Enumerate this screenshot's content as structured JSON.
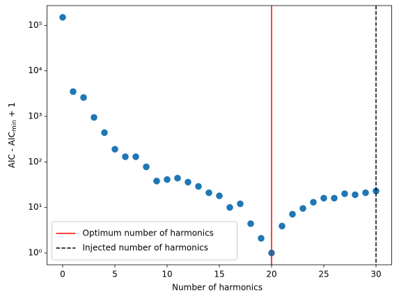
{
  "chart_data": {
    "type": "scatter",
    "xlabel": "Number of harmonics",
    "ylabel": {
      "main": "AIC - AIC",
      "sub": "min",
      "tail": " + 1"
    },
    "x": [
      0,
      1,
      2,
      3,
      4,
      5,
      6,
      7,
      8,
      9,
      10,
      11,
      12,
      13,
      14,
      15,
      16,
      17,
      18,
      19,
      20,
      21,
      22,
      23,
      24,
      25,
      26,
      27,
      28,
      29,
      30
    ],
    "series": [
      {
        "color": "#1f77b4",
        "values": [
          150000,
          3500,
          2600,
          950,
          440,
          190,
          130,
          130,
          78,
          38,
          41,
          44,
          36,
          29,
          21,
          18,
          10,
          12,
          4.4,
          2.1,
          1,
          3.9,
          7.1,
          9.5,
          13,
          16,
          16,
          20,
          19,
          21,
          23
        ]
      }
    ],
    "xlim": [
      -1.5,
      31.5
    ],
    "xticks": [
      0,
      5,
      10,
      15,
      20,
      25,
      30
    ],
    "ylim": [
      0.55,
      272000
    ],
    "yscale": "log",
    "yticks": [
      {
        "value": 1,
        "label": "10⁰"
      },
      {
        "value": 10,
        "label": "10¹"
      },
      {
        "value": 100,
        "label": "10²"
      },
      {
        "value": 1000,
        "label": "10³"
      },
      {
        "value": 10000,
        "label": "10⁴"
      },
      {
        "value": 100000,
        "label": "10⁵"
      }
    ],
    "vlines": [
      {
        "x": 20,
        "color": "#ff0000",
        "dashed": false,
        "name": "Optimum number of harmonics"
      },
      {
        "x": 30,
        "color": "#000000",
        "dashed": true,
        "name": "Injected number of harmonics"
      }
    ],
    "legend": "lower left"
  }
}
